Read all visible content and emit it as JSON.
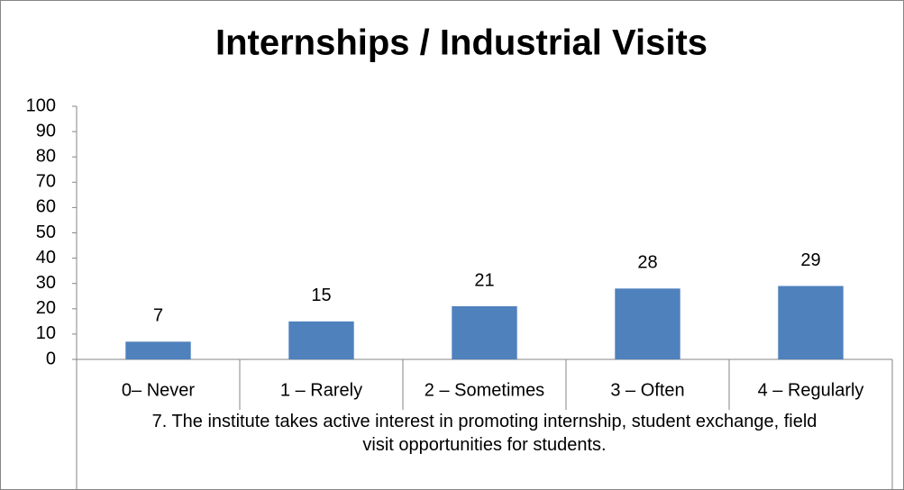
{
  "chart_data": {
    "type": "bar",
    "title": "Internships / Industrial Visits",
    "x_label": "7. The institute takes active interest in promoting internship, student exchange, field visit opportunities for students.",
    "categories": [
      "0– Never",
      "1 – Rarely",
      "2 – Sometimes",
      "3 – Often",
      "4 – Regularly"
    ],
    "values": [
      7,
      15,
      21,
      28,
      29
    ],
    "color": "#4f81bd",
    "ylim": [
      0,
      100
    ],
    "yticks": [
      0,
      10,
      20,
      30,
      40,
      50,
      60,
      70,
      80,
      90,
      100
    ],
    "grid": false,
    "data_labels": true
  }
}
